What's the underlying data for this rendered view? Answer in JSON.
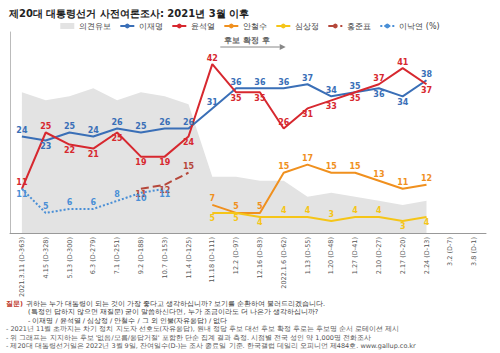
{
  "chart_data": {
    "type": "line",
    "title": "제20대 대통령선거 사전여론조사: 2021년 3월 이후",
    "categories": [
      "2021.3.11 (D-363)",
      "4.15 (D-328)",
      "5.13 (D-300)",
      "6.3 (D-279)",
      "7.1 (D-251)",
      "9.2 (D-188)",
      "10.7 (D-153)",
      "11.4 (D-125)",
      "11.18 (D-111)",
      "12.2 (D-97)",
      "12.16 (D-83)",
      "2022.1.6 (D-62)",
      "1.13 (D-55)",
      "1.20 (D-48)",
      "1.27 (D-41)",
      "2.10 (D-27)",
      "2.17 (D-20)",
      "2.24 (D-13)",
      "3.2 (D-7)",
      "3.8 (D-1)"
    ],
    "series": [
      {
        "name": "의견유보",
        "type": "area",
        "color": "#e3e3e3",
        "marker": "none",
        "line_style": "solid",
        "values": [
          35,
          33,
          34,
          36,
          33,
          35,
          34,
          32,
          14,
          14,
          13,
          13,
          9,
          10,
          9,
          8,
          7,
          8,
          null,
          null
        ]
      },
      {
        "name": "이재명",
        "type": "line",
        "color": "#3a6fb7",
        "marker": "none",
        "line_style": "solid",
        "values": [
          24,
          23,
          25,
          24,
          26,
          25,
          26,
          26,
          31,
          36,
          36,
          36,
          37,
          34,
          35,
          36,
          34,
          38,
          null,
          null
        ]
      },
      {
        "name": "윤석열",
        "type": "line",
        "color": "#d7282f",
        "marker": "none",
        "line_style": "solid",
        "values": [
          11,
          25,
          22,
          21,
          25,
          19,
          19,
          24,
          42,
          35,
          35,
          26,
          31,
          33,
          35,
          37,
          41,
          37,
          null,
          null
        ]
      },
      {
        "name": "안철수",
        "type": "line",
        "color": "#f0901e",
        "marker": "none",
        "line_style": "solid",
        "values": [
          null,
          null,
          null,
          null,
          null,
          null,
          null,
          null,
          7,
          5,
          5,
          15,
          17,
          15,
          15,
          13,
          11,
          12,
          null,
          null
        ]
      },
      {
        "name": "심상정",
        "type": "line",
        "color": "#f5c518",
        "marker": "none",
        "line_style": "solid",
        "values": [
          null,
          null,
          null,
          null,
          null,
          null,
          null,
          null,
          5,
          5,
          4,
          4,
          4,
          3,
          4,
          4,
          3,
          4,
          null,
          null
        ]
      },
      {
        "name": "홍준표",
        "type": "line",
        "color": "#b5473a",
        "marker": "none",
        "line_style": "dashed",
        "values": [
          null,
          null,
          null,
          null,
          null,
          11,
          12,
          15,
          null,
          null,
          null,
          null,
          null,
          null,
          null,
          null,
          null,
          null,
          null,
          null
        ]
      },
      {
        "name": "이낙연 (%)",
        "type": "line",
        "color": "#4a8fd6",
        "marker": "none",
        "line_style": "dotted",
        "values": [
          11,
          5,
          6,
          6,
          8,
          10,
          11,
          null,
          null,
          null,
          null,
          null,
          null,
          null,
          null,
          null,
          null,
          null,
          null,
          null
        ]
      }
    ],
    "ylim": [
      0,
      50
    ],
    "grid": false,
    "legend": "top",
    "data_labels": true,
    "tick_labels": "x",
    "annotation": "후보 확정 후",
    "question": {
      "label": "질문)",
      "lines": [
        "귀하는 누가 대통령이 되는 것이 가장 좋다고 생각하십니까? 보기를 순환하여 불러드리겠습니다.",
        "(특정인 답하지 않으면 재질문) 굳이 말씀하신다면, 누가 조금이라도 더 나은가 생각하십니까?",
        "- 이재명 / 윤석열 / 심상정 / 안철수 / 그 외 인물(자유응답) / 없다"
      ]
    },
    "notes": [
      "- 2021년 11월 초까지는 차기 정치 지도자 선호도(자유응답), 원내 정당 후보 대선 후보 확정 후로는 후보명 순서 로테이션 제시",
      "- 위 그래프는 지지하는 후보 '없음/모름/응답거절' 포함한 단순 집계 결과 측정. 시점별 전국 성인 약 1,000명 전화조사",
      "- 제20대 대통령선거일은 2022년 3월 9일, 잔여일수(D-)는 조사 종료일 기준. 한국갤럽 데일리 오피니언 제484호. www.gallup.co.kr"
    ]
  }
}
